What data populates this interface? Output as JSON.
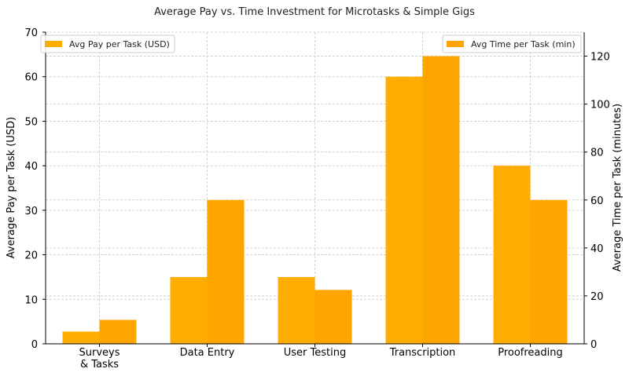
{
  "chart_data": {
    "type": "bar",
    "title": "Average Pay vs. Time Investment for Microtasks & Simple Gigs",
    "categories": [
      [
        "Surveys",
        "& Tasks"
      ],
      [
        "Data Entry"
      ],
      [
        "User Testing"
      ],
      [
        "Transcription"
      ],
      [
        "Proofreading"
      ]
    ],
    "series": [
      {
        "name": "Avg Pay per Task (USD)",
        "axis": "left",
        "values": [
          2.75,
          15,
          15,
          60,
          40
        ],
        "color": "#ffad00"
      },
      {
        "name": "Avg Time per Task (min)",
        "axis": "right",
        "values": [
          10,
          60,
          22.5,
          120,
          60
        ],
        "color": "#ffa500"
      }
    ],
    "ylabel": "Average Pay per Task (USD)",
    "y2label": "Average Time per Task (minutes)",
    "ylim": [
      0,
      70
    ],
    "y2lim": [
      0,
      130
    ],
    "yticks": [
      0,
      10,
      20,
      30,
      40,
      50,
      60,
      70
    ],
    "y2ticks": [
      0,
      20,
      40,
      60,
      80,
      100,
      120
    ],
    "grid": true,
    "legend_left_position": "top-left",
    "legend_right_position": "top-right"
  }
}
